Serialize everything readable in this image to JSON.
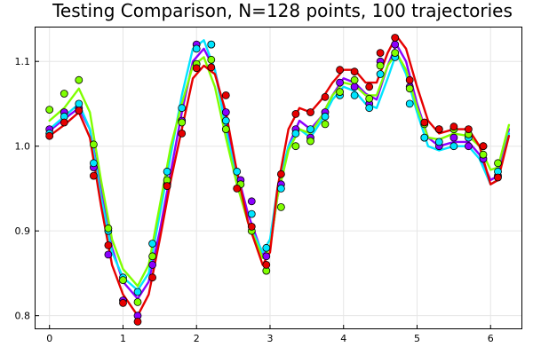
{
  "chart_data": {
    "type": "line",
    "title": "Testing Comparison, N=128 points, 100 trajectories",
    "xlabel": "",
    "ylabel": "",
    "xlim": [
      -0.19,
      6.42
    ],
    "ylim": [
      0.785,
      1.14
    ],
    "xticks": [
      0,
      1,
      2,
      3,
      4,
      5,
      6
    ],
    "yticks": [
      0.8,
      0.9,
      1.0,
      1.1
    ],
    "ytick_labels": [
      "0.8",
      "0.9",
      "1.0",
      "1.1"
    ],
    "grid": true,
    "legend": "none",
    "series": [
      {
        "color": "#8b00ff",
        "line": [
          [
            0,
            1.018
          ],
          [
            0.2,
            1.032
          ],
          [
            0.4,
            1.045
          ],
          [
            0.55,
            1.02
          ],
          [
            0.7,
            0.95
          ],
          [
            0.85,
            0.88
          ],
          [
            1.0,
            0.84
          ],
          [
            1.2,
            0.82
          ],
          [
            1.35,
            0.84
          ],
          [
            1.5,
            0.9
          ],
          [
            1.65,
            0.97
          ],
          [
            1.8,
            1.04
          ],
          [
            1.95,
            1.1
          ],
          [
            2.1,
            1.115
          ],
          [
            2.25,
            1.09
          ],
          [
            2.4,
            1.03
          ],
          [
            2.55,
            0.97
          ],
          [
            2.7,
            0.92
          ],
          [
            2.9,
            0.872
          ],
          [
            3.0,
            0.88
          ],
          [
            3.1,
            0.94
          ],
          [
            3.25,
            1.0
          ],
          [
            3.4,
            1.03
          ],
          [
            3.55,
            1.02
          ],
          [
            3.7,
            1.035
          ],
          [
            3.85,
            1.06
          ],
          [
            4.0,
            1.08
          ],
          [
            4.15,
            1.075
          ],
          [
            4.3,
            1.062
          ],
          [
            4.45,
            1.055
          ],
          [
            4.6,
            1.095
          ],
          [
            4.72,
            1.12
          ],
          [
            4.85,
            1.1
          ],
          [
            5.0,
            1.05
          ],
          [
            5.15,
            1.01
          ],
          [
            5.3,
            1.0
          ],
          [
            5.5,
            1.005
          ],
          [
            5.7,
            1.005
          ],
          [
            5.85,
            0.99
          ],
          [
            6.0,
            0.96
          ],
          [
            6.1,
            0.965
          ],
          [
            6.25,
            1.02
          ]
        ],
        "points": [
          [
            0,
            1.02
          ],
          [
            0.2,
            1.04
          ],
          [
            0.4,
            1.045
          ],
          [
            0.6,
            0.975
          ],
          [
            0.8,
            0.872
          ],
          [
            1.0,
            0.818
          ],
          [
            1.2,
            0.8
          ],
          [
            1.4,
            0.86
          ],
          [
            1.6,
            0.955
          ],
          [
            1.8,
            1.03
          ],
          [
            2.0,
            1.12
          ],
          [
            2.2,
            1.12
          ],
          [
            2.4,
            1.04
          ],
          [
            2.6,
            0.96
          ],
          [
            2.75,
            0.935
          ],
          [
            2.95,
            0.87
          ],
          [
            3.15,
            0.955
          ],
          [
            3.35,
            1.02
          ],
          [
            3.55,
            1.01
          ],
          [
            3.75,
            1.04
          ],
          [
            3.95,
            1.075
          ],
          [
            4.15,
            1.07
          ],
          [
            4.35,
            1.05
          ],
          [
            4.5,
            1.1
          ],
          [
            4.7,
            1.12
          ],
          [
            4.9,
            1.07
          ],
          [
            5.1,
            1.01
          ],
          [
            5.3,
            1.0
          ],
          [
            5.5,
            1.01
          ],
          [
            5.7,
            1.0
          ],
          [
            5.9,
            0.985
          ],
          [
            6.1,
            0.965
          ]
        ]
      },
      {
        "color": "#00e5ff",
        "line": [
          [
            0,
            1.02
          ],
          [
            0.2,
            1.035
          ],
          [
            0.4,
            1.05
          ],
          [
            0.55,
            1.02
          ],
          [
            0.7,
            0.94
          ],
          [
            0.85,
            0.875
          ],
          [
            1.0,
            0.845
          ],
          [
            1.2,
            0.83
          ],
          [
            1.35,
            0.85
          ],
          [
            1.5,
            0.92
          ],
          [
            1.65,
            0.99
          ],
          [
            1.8,
            1.06
          ],
          [
            1.95,
            1.115
          ],
          [
            2.1,
            1.125
          ],
          [
            2.25,
            1.09
          ],
          [
            2.4,
            1.02
          ],
          [
            2.55,
            0.96
          ],
          [
            2.7,
            0.91
          ],
          [
            2.9,
            0.875
          ],
          [
            3.0,
            0.89
          ],
          [
            3.1,
            0.95
          ],
          [
            3.25,
            1.0
          ],
          [
            3.4,
            1.02
          ],
          [
            3.55,
            1.01
          ],
          [
            3.7,
            1.03
          ],
          [
            3.85,
            1.055
          ],
          [
            4.0,
            1.07
          ],
          [
            4.15,
            1.065
          ],
          [
            4.3,
            1.05
          ],
          [
            4.45,
            1.045
          ],
          [
            4.6,
            1.08
          ],
          [
            4.72,
            1.11
          ],
          [
            4.85,
            1.085
          ],
          [
            5.0,
            1.04
          ],
          [
            5.15,
            1.0
          ],
          [
            5.3,
            0.995
          ],
          [
            5.5,
            1.0
          ],
          [
            5.7,
            1.0
          ],
          [
            5.85,
            0.985
          ],
          [
            6.0,
            0.955
          ],
          [
            6.1,
            0.96
          ],
          [
            6.25,
            1.015
          ]
        ],
        "points": [
          [
            0,
            1.015
          ],
          [
            0.2,
            1.035
          ],
          [
            0.4,
            1.05
          ],
          [
            0.6,
            0.98
          ],
          [
            0.8,
            0.9
          ],
          [
            1.0,
            0.845
          ],
          [
            1.2,
            0.828
          ],
          [
            1.4,
            0.885
          ],
          [
            1.6,
            0.97
          ],
          [
            1.8,
            1.045
          ],
          [
            2.0,
            1.115
          ],
          [
            2.2,
            1.12
          ],
          [
            2.4,
            1.03
          ],
          [
            2.55,
            0.97
          ],
          [
            2.75,
            0.92
          ],
          [
            2.95,
            0.88
          ],
          [
            3.15,
            0.95
          ],
          [
            3.35,
            1.015
          ],
          [
            3.55,
            1.02
          ],
          [
            3.75,
            1.035
          ],
          [
            3.95,
            1.06
          ],
          [
            4.15,
            1.06
          ],
          [
            4.35,
            1.045
          ],
          [
            4.5,
            1.085
          ],
          [
            4.7,
            1.105
          ],
          [
            4.9,
            1.05
          ],
          [
            5.1,
            1.01
          ],
          [
            5.3,
            1.005
          ],
          [
            5.5,
            1.0
          ],
          [
            5.7,
            1.01
          ],
          [
            5.9,
            1.0
          ],
          [
            6.1,
            0.97
          ]
        ]
      },
      {
        "color": "#80ff00",
        "line": [
          [
            0,
            1.03
          ],
          [
            0.2,
            1.045
          ],
          [
            0.4,
            1.068
          ],
          [
            0.55,
            1.04
          ],
          [
            0.7,
            0.96
          ],
          [
            0.85,
            0.89
          ],
          [
            1.0,
            0.855
          ],
          [
            1.2,
            0.835
          ],
          [
            1.35,
            0.86
          ],
          [
            1.5,
            0.93
          ],
          [
            1.65,
            1.0
          ],
          [
            1.8,
            1.05
          ],
          [
            1.95,
            1.095
          ],
          [
            2.1,
            1.105
          ],
          [
            2.25,
            1.07
          ],
          [
            2.4,
            1.01
          ],
          [
            2.55,
            0.955
          ],
          [
            2.7,
            0.91
          ],
          [
            2.9,
            0.868
          ],
          [
            3.0,
            0.88
          ],
          [
            3.1,
            0.94
          ],
          [
            3.25,
            0.995
          ],
          [
            3.4,
            1.02
          ],
          [
            3.55,
            1.015
          ],
          [
            3.7,
            1.035
          ],
          [
            3.85,
            1.06
          ],
          [
            4.0,
            1.075
          ],
          [
            4.15,
            1.072
          ],
          [
            4.3,
            1.06
          ],
          [
            4.45,
            1.06
          ],
          [
            4.6,
            1.095
          ],
          [
            4.72,
            1.11
          ],
          [
            4.85,
            1.09
          ],
          [
            5.0,
            1.045
          ],
          [
            5.15,
            1.01
          ],
          [
            5.3,
            1.008
          ],
          [
            5.5,
            1.015
          ],
          [
            5.7,
            1.012
          ],
          [
            5.85,
            1.0
          ],
          [
            6.0,
            0.972
          ],
          [
            6.1,
            0.975
          ],
          [
            6.25,
            1.025
          ]
        ],
        "points": [
          [
            0,
            1.043
          ],
          [
            0.2,
            1.062
          ],
          [
            0.4,
            1.078
          ],
          [
            0.6,
            1.002
          ],
          [
            0.8,
            0.903
          ],
          [
            1.0,
            0.842
          ],
          [
            1.2,
            0.816
          ],
          [
            1.4,
            0.87
          ],
          [
            1.6,
            0.96
          ],
          [
            1.8,
            1.028
          ],
          [
            2.0,
            1.097
          ],
          [
            2.2,
            1.102
          ],
          [
            2.4,
            1.02
          ],
          [
            2.6,
            0.955
          ],
          [
            2.75,
            0.9
          ],
          [
            2.95,
            0.853
          ],
          [
            3.15,
            0.928
          ],
          [
            3.35,
            1.0
          ],
          [
            3.55,
            1.006
          ],
          [
            3.75,
            1.026
          ],
          [
            3.95,
            1.064
          ],
          [
            4.15,
            1.078
          ],
          [
            4.35,
            1.056
          ],
          [
            4.5,
            1.095
          ],
          [
            4.7,
            1.11
          ],
          [
            4.9,
            1.068
          ],
          [
            5.1,
            1.026
          ],
          [
            5.3,
            1.02
          ],
          [
            5.5,
            1.02
          ],
          [
            5.7,
            1.014
          ],
          [
            5.9,
            0.99
          ],
          [
            6.1,
            0.98
          ]
        ]
      },
      {
        "color": "#e60000",
        "line": [
          [
            0,
            1.012
          ],
          [
            0.2,
            1.025
          ],
          [
            0.4,
            1.04
          ],
          [
            0.55,
            1.01
          ],
          [
            0.7,
            0.93
          ],
          [
            0.85,
            0.86
          ],
          [
            1.0,
            0.825
          ],
          [
            1.2,
            0.8
          ],
          [
            1.35,
            0.825
          ],
          [
            1.5,
            0.89
          ],
          [
            1.65,
            0.96
          ],
          [
            1.8,
            1.02
          ],
          [
            1.95,
            1.08
          ],
          [
            2.1,
            1.095
          ],
          [
            2.25,
            1.085
          ],
          [
            2.4,
            1.04
          ],
          [
            2.55,
            0.97
          ],
          [
            2.7,
            0.91
          ],
          [
            2.9,
            0.86
          ],
          [
            3.0,
            0.875
          ],
          [
            3.1,
            0.95
          ],
          [
            3.25,
            1.02
          ],
          [
            3.4,
            1.045
          ],
          [
            3.55,
            1.04
          ],
          [
            3.7,
            1.055
          ],
          [
            3.85,
            1.075
          ],
          [
            4.0,
            1.09
          ],
          [
            4.15,
            1.09
          ],
          [
            4.3,
            1.075
          ],
          [
            4.45,
            1.075
          ],
          [
            4.6,
            1.11
          ],
          [
            4.72,
            1.13
          ],
          [
            4.85,
            1.115
          ],
          [
            5.0,
            1.07
          ],
          [
            5.15,
            1.03
          ],
          [
            5.3,
            1.015
          ],
          [
            5.5,
            1.02
          ],
          [
            5.7,
            1.02
          ],
          [
            5.85,
            1.0
          ],
          [
            6.0,
            0.955
          ],
          [
            6.1,
            0.96
          ],
          [
            6.25,
            1.012
          ]
        ],
        "points": [
          [
            0,
            1.012
          ],
          [
            0.2,
            1.028
          ],
          [
            0.4,
            1.042
          ],
          [
            0.6,
            0.965
          ],
          [
            0.8,
            0.883
          ],
          [
            1.0,
            0.815
          ],
          [
            1.2,
            0.793
          ],
          [
            1.4,
            0.845
          ],
          [
            1.6,
            0.953
          ],
          [
            1.8,
            1.015
          ],
          [
            2.0,
            1.092
          ],
          [
            2.2,
            1.093
          ],
          [
            2.4,
            1.06
          ],
          [
            2.55,
            0.95
          ],
          [
            2.75,
            0.905
          ],
          [
            2.95,
            0.86
          ],
          [
            3.15,
            0.967
          ],
          [
            3.35,
            1.038
          ],
          [
            3.55,
            1.04
          ],
          [
            3.75,
            1.058
          ],
          [
            3.95,
            1.09
          ],
          [
            4.15,
            1.088
          ],
          [
            4.35,
            1.07
          ],
          [
            4.5,
            1.11
          ],
          [
            4.7,
            1.128
          ],
          [
            4.9,
            1.078
          ],
          [
            5.1,
            1.028
          ],
          [
            5.3,
            1.02
          ],
          [
            5.5,
            1.023
          ],
          [
            5.7,
            1.02
          ],
          [
            5.9,
            1.0
          ],
          [
            6.1,
            0.963
          ]
        ]
      }
    ]
  }
}
